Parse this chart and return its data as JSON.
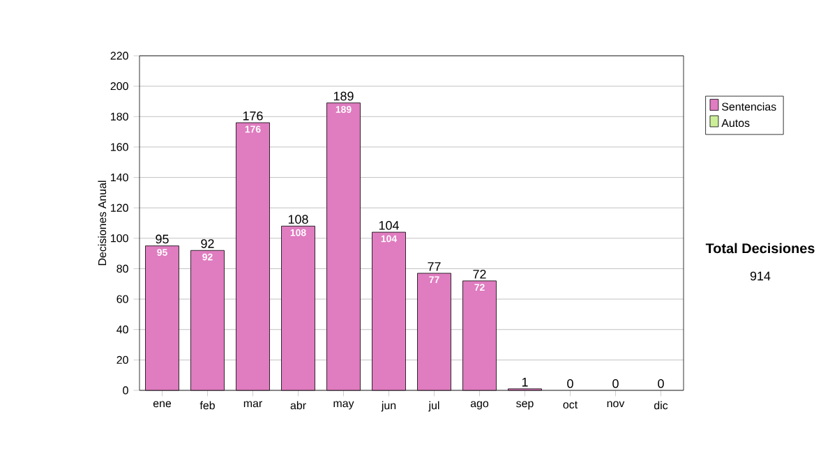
{
  "chart_data": {
    "type": "bar",
    "stacked": true,
    "ylabel": "Decisiones Anual",
    "categories": [
      "ene",
      "feb",
      "mar",
      "abr",
      "may",
      "jun",
      "jul",
      "ago",
      "sep",
      "oct",
      "nov",
      "dic"
    ],
    "series": [
      {
        "name": "Sentencias",
        "color": "#e07cc0",
        "values": [
          95,
          92,
          176,
          108,
          189,
          104,
          77,
          72,
          1,
          0,
          0,
          0
        ],
        "value_labels": [
          "95",
          "92",
          "176",
          "108",
          "189",
          "104",
          "77",
          "72",
          null,
          null,
          null,
          null
        ]
      },
      {
        "name": "Autos",
        "color": "#ccee99",
        "values": [
          0,
          0,
          0,
          0,
          0,
          0,
          0,
          0,
          0,
          0,
          0,
          0
        ]
      }
    ],
    "totals": [
      "95",
      "92",
      "176",
      "108",
      "189",
      "104",
      "77",
      "72",
      "1",
      "0",
      "0",
      "0"
    ],
    "ylim": [
      0,
      220
    ],
    "yticks": [
      0,
      20,
      40,
      60,
      80,
      100,
      120,
      140,
      160,
      180,
      200,
      220
    ],
    "grid": "y",
    "legend": "right",
    "annotations": [
      "Total Decisiones",
      "914"
    ]
  }
}
